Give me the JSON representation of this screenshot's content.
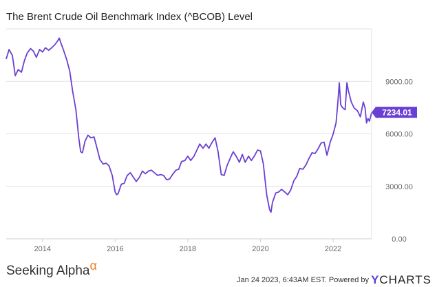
{
  "chart_data": {
    "type": "line",
    "title": "The Brent Crude Oil Benchmark Index (^BCOB) Level",
    "xlabel": "",
    "ylabel": "",
    "x_ticks": [
      "2014",
      "2016",
      "2018",
      "2020",
      "2022"
    ],
    "y_ticks": [
      "0.00",
      "3000.00",
      "6000.00",
      "9000.00"
    ],
    "ylim": [
      0,
      12000
    ],
    "xlim": [
      2013.0,
      2023.06
    ],
    "grid": "horizontal",
    "legend": "none",
    "line_color": "#6a3fd4",
    "series": [
      {
        "last_value_label": "7234.01",
        "points": [
          [
            2013.0,
            10300
          ],
          [
            2013.08,
            10800
          ],
          [
            2013.17,
            10500
          ],
          [
            2013.25,
            9300
          ],
          [
            2013.33,
            9700
          ],
          [
            2013.42,
            9500
          ],
          [
            2013.5,
            10200
          ],
          [
            2013.58,
            10600
          ],
          [
            2013.67,
            10900
          ],
          [
            2013.75,
            10700
          ],
          [
            2013.83,
            10400
          ],
          [
            2013.92,
            10800
          ],
          [
            2014.0,
            10700
          ],
          [
            2014.08,
            10900
          ],
          [
            2014.17,
            10800
          ],
          [
            2014.25,
            10900
          ],
          [
            2014.33,
            11100
          ],
          [
            2014.42,
            11300
          ],
          [
            2014.46,
            11500
          ],
          [
            2014.5,
            11200
          ],
          [
            2014.58,
            10800
          ],
          [
            2014.67,
            10200
          ],
          [
            2014.75,
            9600
          ],
          [
            2014.83,
            8400
          ],
          [
            2014.92,
            7400
          ],
          [
            2015.0,
            5700
          ],
          [
            2015.05,
            5000
          ],
          [
            2015.1,
            4900
          ],
          [
            2015.17,
            5600
          ],
          [
            2015.25,
            5900
          ],
          [
            2015.33,
            5800
          ],
          [
            2015.42,
            5800
          ],
          [
            2015.5,
            5200
          ],
          [
            2015.58,
            4500
          ],
          [
            2015.67,
            4300
          ],
          [
            2015.75,
            4300
          ],
          [
            2015.83,
            4200
          ],
          [
            2015.92,
            3600
          ],
          [
            2016.0,
            2700
          ],
          [
            2016.04,
            2500
          ],
          [
            2016.08,
            2600
          ],
          [
            2016.17,
            3100
          ],
          [
            2016.25,
            3200
          ],
          [
            2016.33,
            3600
          ],
          [
            2016.42,
            3800
          ],
          [
            2016.5,
            3500
          ],
          [
            2016.58,
            3300
          ],
          [
            2016.67,
            3500
          ],
          [
            2016.75,
            3900
          ],
          [
            2016.83,
            3700
          ],
          [
            2016.92,
            3900
          ],
          [
            2017.0,
            3900
          ],
          [
            2017.08,
            3800
          ],
          [
            2017.17,
            3600
          ],
          [
            2017.25,
            3700
          ],
          [
            2017.33,
            3600
          ],
          [
            2017.42,
            3400
          ],
          [
            2017.5,
            3400
          ],
          [
            2017.58,
            3700
          ],
          [
            2017.67,
            3900
          ],
          [
            2017.75,
            4000
          ],
          [
            2017.83,
            4400
          ],
          [
            2017.92,
            4500
          ],
          [
            2018.0,
            4700
          ],
          [
            2018.08,
            4500
          ],
          [
            2018.17,
            4700
          ],
          [
            2018.25,
            5100
          ],
          [
            2018.33,
            5400
          ],
          [
            2018.42,
            5200
          ],
          [
            2018.5,
            5400
          ],
          [
            2018.58,
            5200
          ],
          [
            2018.67,
            5500
          ],
          [
            2018.75,
            5800
          ],
          [
            2018.83,
            5000
          ],
          [
            2018.92,
            3700
          ],
          [
            2019.0,
            3600
          ],
          [
            2019.08,
            4200
          ],
          [
            2019.17,
            4600
          ],
          [
            2019.25,
            5000
          ],
          [
            2019.33,
            4700
          ],
          [
            2019.42,
            4400
          ],
          [
            2019.5,
            4800
          ],
          [
            2019.58,
            4400
          ],
          [
            2019.67,
            4700
          ],
          [
            2019.75,
            4500
          ],
          [
            2019.83,
            4700
          ],
          [
            2019.92,
            5100
          ],
          [
            2020.0,
            5000
          ],
          [
            2020.08,
            4300
          ],
          [
            2020.17,
            2500
          ],
          [
            2020.25,
            1700
          ],
          [
            2020.29,
            1500
          ],
          [
            2020.33,
            2100
          ],
          [
            2020.42,
            2600
          ],
          [
            2020.5,
            2700
          ],
          [
            2020.58,
            2800
          ],
          [
            2020.67,
            2700
          ],
          [
            2020.75,
            2500
          ],
          [
            2020.83,
            2800
          ],
          [
            2020.92,
            3300
          ],
          [
            2021.0,
            3600
          ],
          [
            2021.08,
            4000
          ],
          [
            2021.17,
            4000
          ],
          [
            2021.25,
            4200
          ],
          [
            2021.33,
            4600
          ],
          [
            2021.42,
            4900
          ],
          [
            2021.5,
            4900
          ],
          [
            2021.58,
            5100
          ],
          [
            2021.67,
            5500
          ],
          [
            2021.75,
            5500
          ],
          [
            2021.83,
            4800
          ],
          [
            2021.92,
            5500
          ],
          [
            2022.0,
            6000
          ],
          [
            2022.08,
            6600
          ],
          [
            2022.13,
            7800
          ],
          [
            2022.17,
            8900
          ],
          [
            2022.21,
            7700
          ],
          [
            2022.25,
            7500
          ],
          [
            2022.33,
            7400
          ],
          [
            2022.38,
            8900
          ],
          [
            2022.42,
            8500
          ],
          [
            2022.5,
            7800
          ],
          [
            2022.58,
            7500
          ],
          [
            2022.67,
            7300
          ],
          [
            2022.75,
            7000
          ],
          [
            2022.83,
            7800
          ],
          [
            2022.88,
            7500
          ],
          [
            2022.92,
            6600
          ],
          [
            2022.96,
            6900
          ],
          [
            2023.0,
            6700
          ],
          [
            2023.06,
            7234
          ]
        ]
      }
    ]
  },
  "footer": {
    "brand_text": "Seeking Alpha",
    "brand_symbol": "α",
    "timestamp": "Jan 24 2023, 6:43AM EST.",
    "powered_by": "Powered by",
    "ycharts_y": "Y",
    "ycharts_rest": "CHARTS"
  }
}
